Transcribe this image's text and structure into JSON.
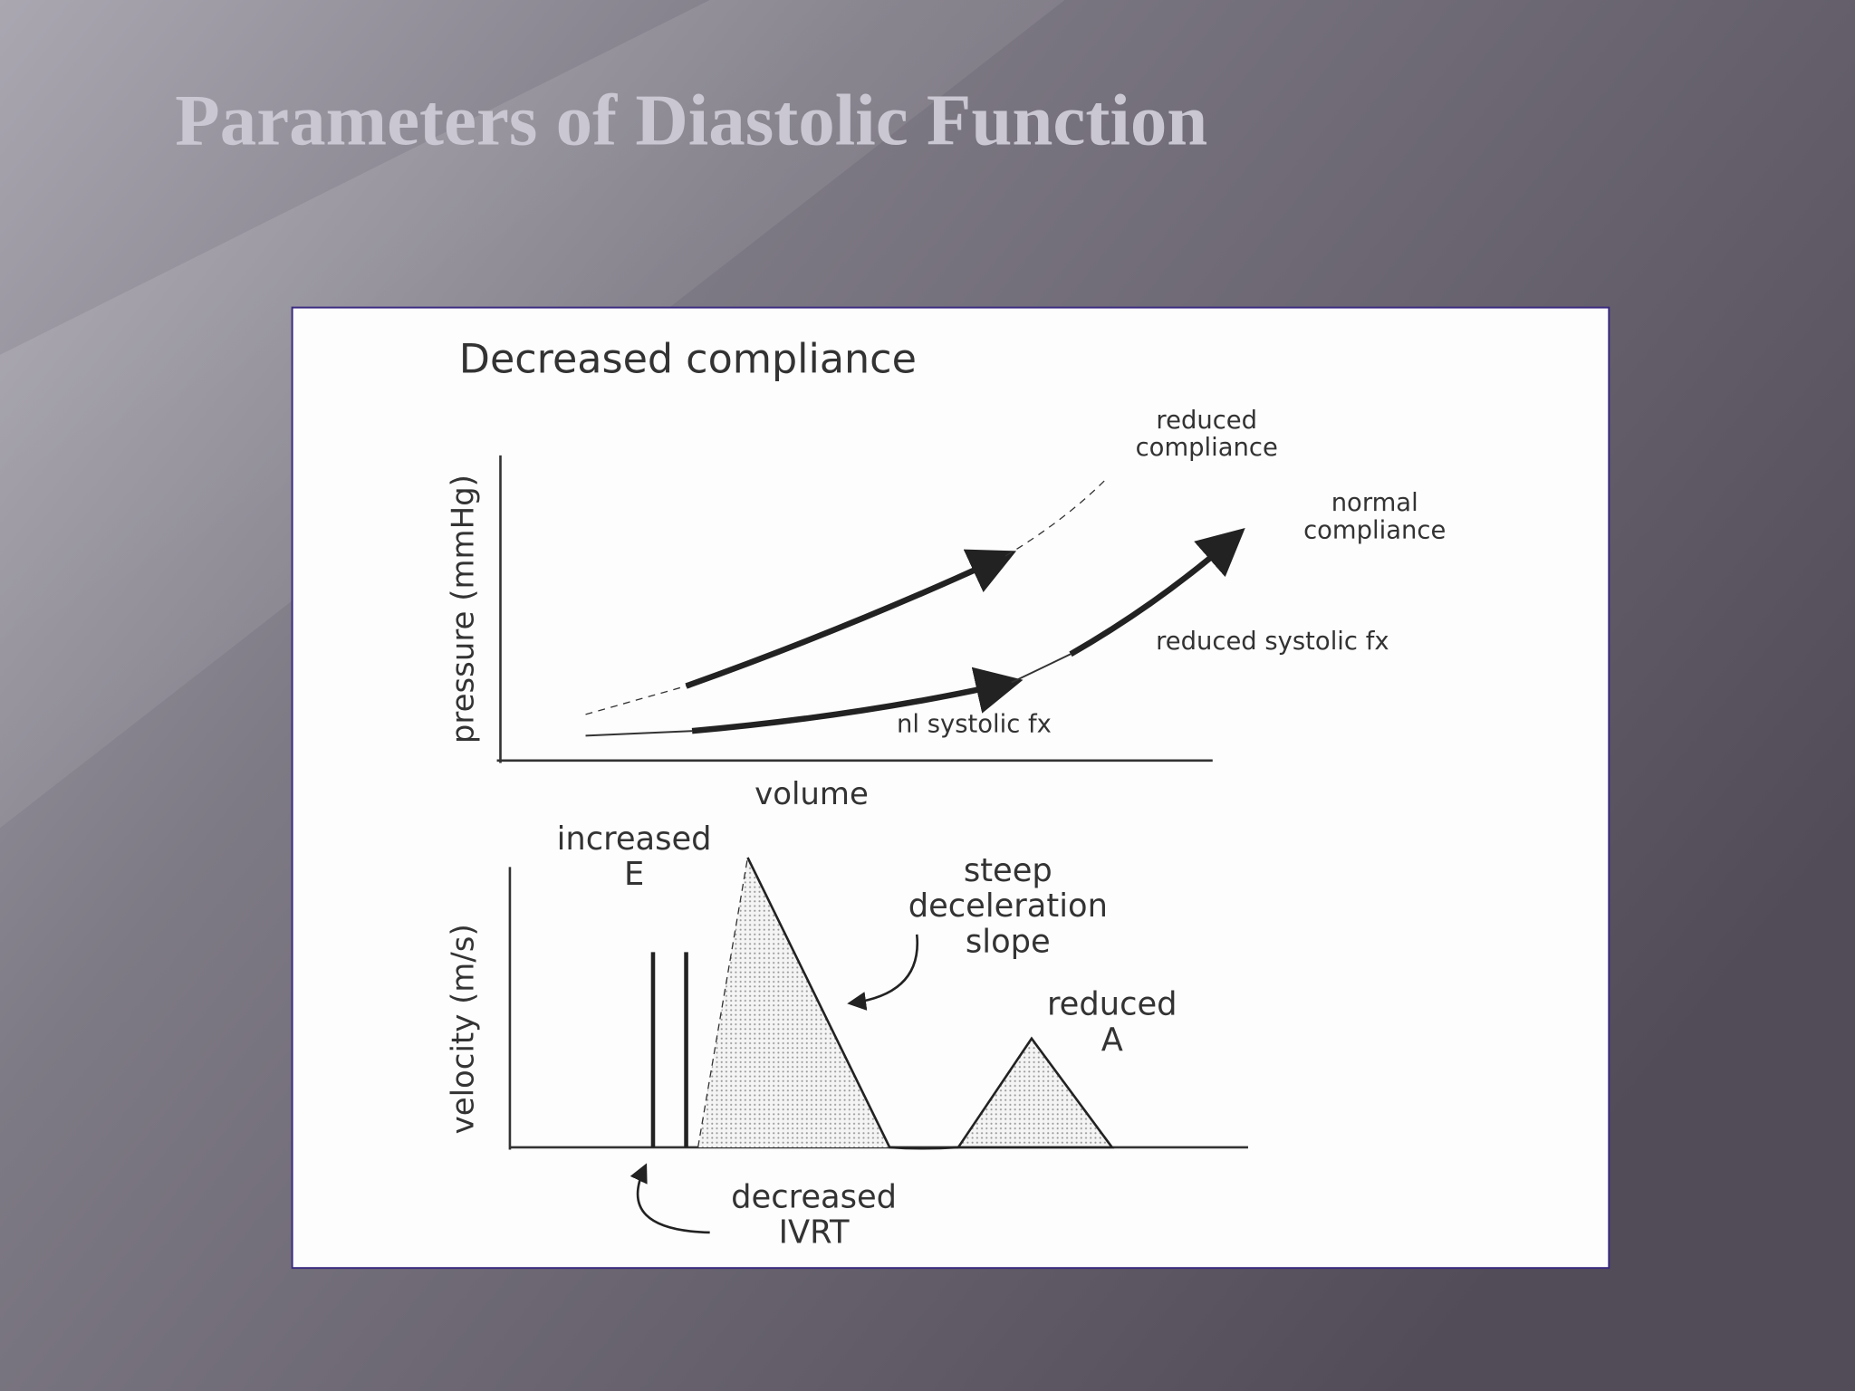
{
  "title": "Parameters of Diastolic Function",
  "figure": {
    "title": "Decreased compliance",
    "top_plot": {
      "y_label": "pressure (mmHg)",
      "x_label": "volume",
      "labels": [
        [
          "reduced",
          "compliance"
        ],
        [
          "normal",
          "compliance"
        ],
        [
          "reduced systolic fx"
        ],
        [
          "nl systolic fx"
        ]
      ]
    },
    "bottom_plot": {
      "y_label": "velocity (m/s)",
      "labels": [
        [
          "increased",
          "E"
        ],
        [
          "steep",
          "deceleration",
          "slope"
        ],
        [
          "reduced",
          "A"
        ],
        [
          "decreased",
          "IVRT"
        ]
      ]
    }
  }
}
